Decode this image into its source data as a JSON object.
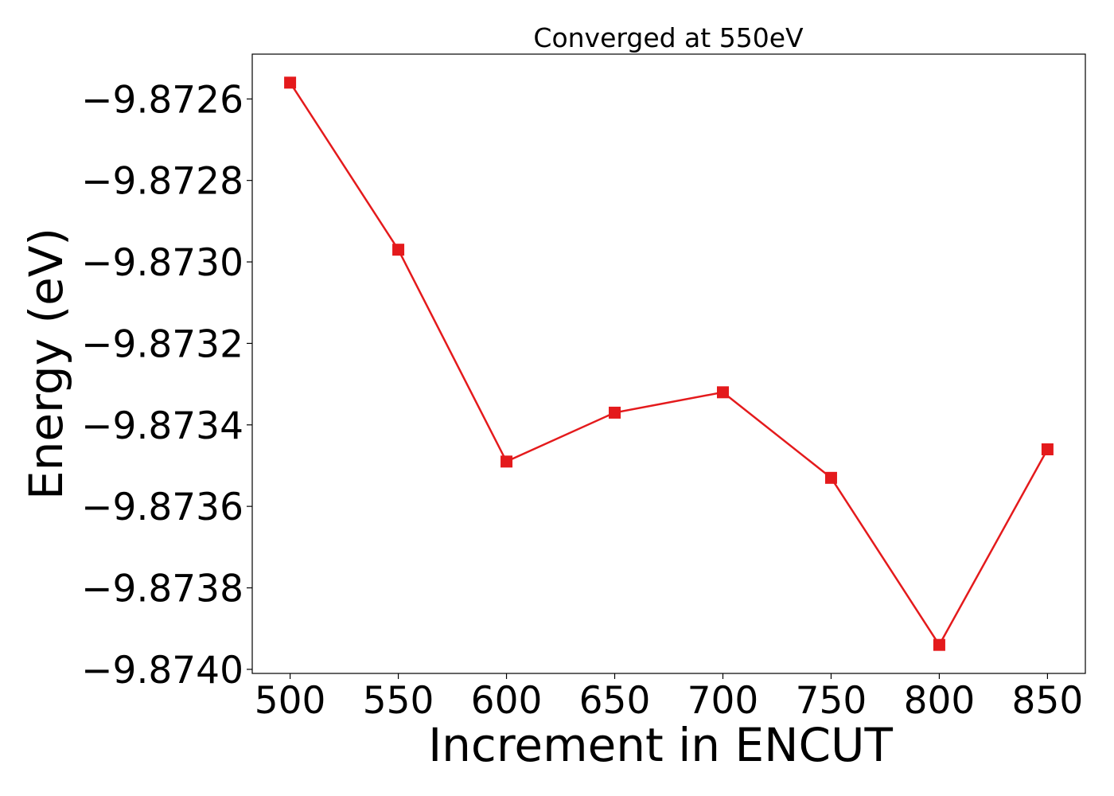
{
  "chart_data": {
    "type": "line",
    "title": "Converged at 550eV",
    "xlabel": "Increment in ENCUT",
    "ylabel": "Energy (eV)",
    "x": [
      500,
      550,
      600,
      650,
      700,
      750,
      800,
      850
    ],
    "series": [
      {
        "values": [
          -9.87256,
          -9.87297,
          -9.87349,
          -9.87337,
          -9.87332,
          -9.87353,
          -9.87394,
          -9.87346
        ],
        "color": "#e41a1c",
        "marker": "square"
      }
    ],
    "xticks": [
      500,
      550,
      600,
      650,
      700,
      750,
      800,
      850
    ],
    "xtick_labels": [
      "500",
      "550",
      "600",
      "650",
      "700",
      "750",
      "800",
      "850"
    ],
    "yticks": [
      -9.8726,
      -9.8728,
      -9.873,
      -9.8732,
      -9.8734,
      -9.8736,
      -9.8738,
      -9.874
    ],
    "ytick_labels": [
      "−9.8726",
      "−9.8728",
      "−9.8730",
      "−9.8732",
      "−9.8734",
      "−9.8736",
      "−9.8738",
      "−9.8740"
    ],
    "xlim": [
      482.5,
      867.5
    ],
    "ylim": [
      -9.87401,
      -9.87249
    ],
    "grid": false,
    "legend": "none"
  }
}
